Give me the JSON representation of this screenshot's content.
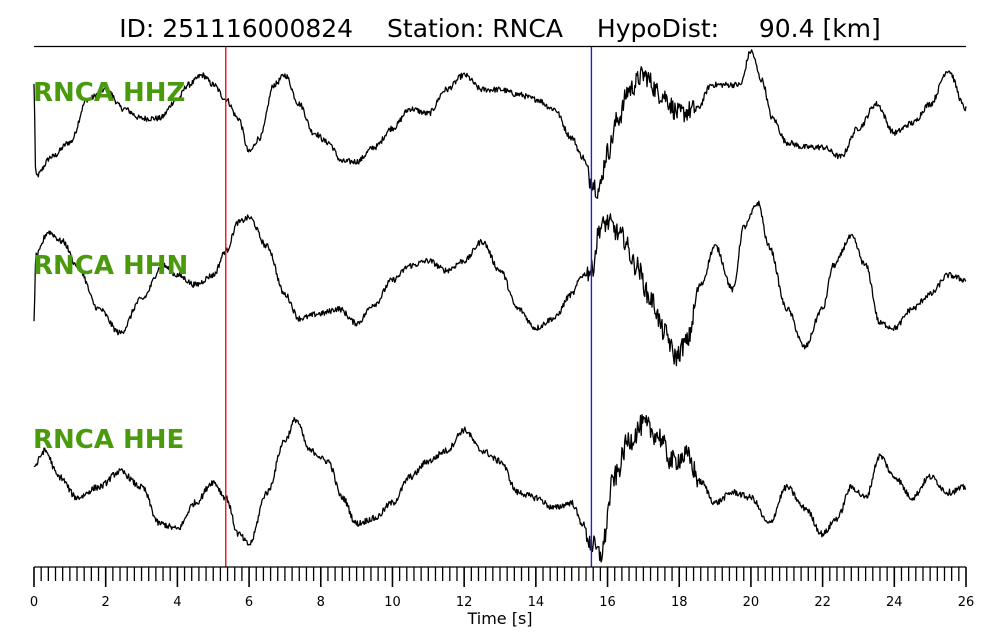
{
  "header": {
    "id_text": "ID: 251116000824",
    "station_text": "Station: RNCA",
    "hypodist_text": "HypoDist:     90.4 [km]"
  },
  "chart_data": {
    "type": "line",
    "title": "ID: 251116000824   Station: RNCA   HypoDist:     90.4 [km]",
    "xlabel": "Time [s]",
    "ylabel": "",
    "xlim": [
      0,
      26
    ],
    "x_ticks": [
      0,
      2,
      4,
      6,
      8,
      10,
      12,
      14,
      16,
      18,
      20,
      22,
      24,
      26
    ],
    "minor_tick_step": 0.2,
    "grid": false,
    "label_color": "#4a9a0e",
    "trace_color": "#000000",
    "markers": [
      {
        "time": 5.35,
        "color": "#e8151b"
      },
      {
        "time": 15.55,
        "color": "#1f1fd6"
      }
    ],
    "series": [
      {
        "name": "RNCA HHZ",
        "x": [
          0,
          0.05,
          0.5,
          1,
          1.5,
          2,
          2.5,
          3,
          3.5,
          4,
          4.3,
          4.7,
          5,
          5.35,
          5.7,
          6,
          6.3,
          6.7,
          7,
          7.4,
          7.8,
          8.2,
          8.6,
          9,
          9.5,
          10,
          10.5,
          11,
          11.5,
          12,
          12.5,
          13,
          13.5,
          14,
          14.5,
          15,
          15.3,
          15.55,
          15.75,
          16,
          16.3,
          16.6,
          17,
          17.5,
          18,
          18.5,
          18.9,
          19.3,
          19.7,
          20,
          20.3,
          20.6,
          21,
          21.5,
          22,
          22.5,
          23,
          23.5,
          24,
          24.5,
          25,
          25.5,
          26
        ],
        "y": [
          0.9,
          -1.0,
          -0.6,
          -0.3,
          0.6,
          0.8,
          0.4,
          0.2,
          0.2,
          0.6,
          0.9,
          1.1,
          0.9,
          0.6,
          0.2,
          -0.5,
          -0.2,
          0.9,
          1.1,
          0.5,
          -0.1,
          -0.3,
          -0.7,
          -0.7,
          -0.4,
          0.0,
          0.4,
          0.3,
          0.8,
          1.1,
          0.8,
          0.8,
          0.7,
          0.6,
          0.4,
          -0.2,
          -0.6,
          -1.1,
          -1.3,
          -0.5,
          0.2,
          0.8,
          1.1,
          0.7,
          0.3,
          0.4,
          0.9,
          0.9,
          0.9,
          1.6,
          1.0,
          0.2,
          -0.3,
          -0.4,
          -0.4,
          -0.6,
          0.0,
          0.5,
          -0.1,
          0.1,
          0.5,
          1.2,
          0.4
        ]
      },
      {
        "name": "RNCA HHN",
        "x": [
          0,
          0.05,
          0.4,
          0.8,
          1.2,
          1.8,
          2.4,
          3,
          3.6,
          4,
          4.5,
          5,
          5.35,
          5.7,
          6,
          6.5,
          7,
          7.4,
          8,
          8.5,
          9,
          9.5,
          10,
          10.5,
          11,
          11.5,
          12,
          12.5,
          13,
          13.5,
          14,
          14.5,
          15,
          15.3,
          15.55,
          15.8,
          16,
          16.4,
          16.8,
          17.2,
          17.6,
          17.9,
          18.2,
          18.6,
          19,
          19.5,
          19.8,
          20.2,
          20.5,
          21,
          21.5,
          22,
          22.3,
          22.8,
          23.2,
          23.6,
          24,
          24.5,
          25,
          25.5,
          26
        ],
        "y": [
          -0.9,
          0.5,
          1.0,
          0.8,
          0.3,
          -0.6,
          -1.1,
          -0.4,
          0.3,
          0.1,
          -0.1,
          0.1,
          0.6,
          1.2,
          1.3,
          0.7,
          -0.3,
          -0.8,
          -0.7,
          -0.6,
          -0.9,
          -0.5,
          0.0,
          0.3,
          0.4,
          0.2,
          0.4,
          0.8,
          0.2,
          -0.6,
          -1.0,
          -0.8,
          -0.3,
          0.1,
          0.2,
          1.1,
          1.2,
          0.9,
          0.3,
          -0.4,
          -1.1,
          -1.6,
          -1.3,
          -0.1,
          0.7,
          -0.2,
          1.1,
          1.6,
          0.7,
          -0.6,
          -1.4,
          -0.6,
          0.3,
          0.9,
          0.3,
          -0.9,
          -1.0,
          -0.6,
          -0.3,
          0.1,
          0.0
        ]
      },
      {
        "name": "RNCA HHE",
        "x": [
          0,
          0.3,
          0.7,
          1.2,
          1.8,
          2.4,
          3,
          3.5,
          4,
          4.5,
          5,
          5.35,
          5.7,
          6,
          6.5,
          7,
          7.3,
          7.7,
          8.2,
          8.6,
          9,
          9.5,
          10,
          10.5,
          11,
          11.5,
          12,
          12.5,
          13,
          13.5,
          14,
          14.5,
          15,
          15.3,
          15.55,
          15.8,
          16.2,
          16.6,
          17,
          17.4,
          17.8,
          18.2,
          18.6,
          19,
          19.5,
          20,
          20.5,
          21,
          21.5,
          22,
          22.4,
          22.8,
          23.2,
          23.6,
          24,
          24.5,
          25,
          25.5,
          26
        ],
        "y": [
          0.3,
          0.6,
          0.1,
          -0.3,
          -0.1,
          0.2,
          -0.1,
          -0.8,
          -0.9,
          -0.4,
          0.0,
          -0.3,
          -1.0,
          -1.2,
          -0.2,
          0.8,
          1.2,
          0.6,
          0.4,
          -0.3,
          -0.8,
          -0.7,
          -0.4,
          0.1,
          0.4,
          0.6,
          1.0,
          0.6,
          0.4,
          -0.2,
          -0.3,
          -0.5,
          -0.4,
          -0.8,
          -1.2,
          -1.4,
          0.1,
          0.8,
          1.1,
          0.9,
          0.4,
          0.5,
          0.0,
          -0.4,
          -0.2,
          -0.3,
          -0.8,
          -0.1,
          -0.5,
          -1.0,
          -0.7,
          -0.1,
          -0.3,
          0.5,
          0.1,
          -0.3,
          0.1,
          -0.2,
          -0.1
        ]
      }
    ]
  }
}
